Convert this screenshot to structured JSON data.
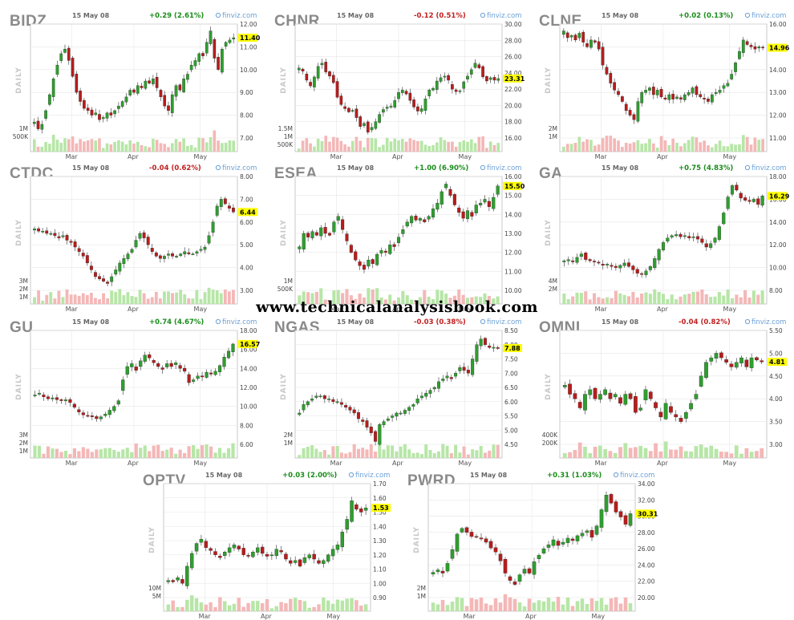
{
  "watermark": "www.technicalanalysisbook.com",
  "common": {
    "date": "15 May 08",
    "brand": "finviz.com",
    "daily_label": "DAILY",
    "months": [
      "Mar",
      "Apr",
      "May"
    ],
    "colors": {
      "up": "#2e9e2e",
      "down": "#b81c1c",
      "up_vol": "#b7e6a7",
      "down_vol": "#f4b7b7",
      "grid": "#e6e6e6",
      "frame": "#bbbbbb"
    }
  },
  "chart_data": [
    {
      "type": "candlestick",
      "ticker": "BIDZ",
      "change": "+0.29 (2.61%)",
      "direction": "up",
      "last": "11.40",
      "ylim": [
        7,
        12
      ],
      "yticks": [
        "12.00",
        "11.00",
        "10.00",
        "9.00",
        "8.00",
        "7.00"
      ],
      "vol_ticks": [
        "1M",
        "500K"
      ],
      "vol_max": 2000000,
      "prices": [
        7.7,
        7.4,
        7.6,
        8.2,
        8.9,
        9.6,
        10.2,
        10.7,
        10.9,
        10.4,
        9.7,
        9.0,
        8.6,
        8.3,
        8.2,
        8.0,
        8.1,
        7.8,
        7.9,
        8.1,
        8.0,
        8.2,
        8.4,
        8.6,
        8.8,
        9.1,
        9.0,
        9.3,
        9.2,
        9.5,
        9.4,
        9.6,
        9.2,
        8.8,
        8.4,
        8.2,
        8.9,
        9.3,
        9.1,
        9.6,
        9.8,
        10.2,
        10.4,
        10.7,
        10.6,
        11.2,
        11.7,
        10.5,
        10.0,
        10.9,
        11.2,
        11.3,
        11.4
      ]
    },
    {
      "type": "candlestick",
      "ticker": "CHNR",
      "change": "-0.12 (0.51%)",
      "direction": "down",
      "last": "23.31",
      "ylim": [
        16,
        30
      ],
      "yticks": [
        "30.00",
        "28.00",
        "26.00",
        "24.00",
        "22.00",
        "20.00",
        "18.00",
        "16.00"
      ],
      "vol_ticks": [
        "1.5M",
        "1M",
        "500K"
      ],
      "vol_max": 3000000,
      "prices": [
        24.6,
        24.2,
        23.1,
        22.4,
        23.5,
        24.8,
        25.2,
        24.1,
        23.6,
        22.8,
        21.0,
        20.1,
        19.6,
        19.2,
        19.4,
        18.5,
        17.4,
        17.8,
        16.7,
        17.3,
        18.0,
        18.9,
        19.5,
        19.8,
        19.9,
        20.6,
        21.6,
        21.9,
        21.4,
        20.6,
        19.8,
        19.3,
        19.6,
        20.8,
        21.9,
        22.1,
        23.0,
        23.4,
        23.6,
        23.1,
        22.0,
        21.7,
        21.8,
        22.9,
        23.6,
        24.4,
        25.2,
        24.6,
        23.5,
        23.0,
        23.4,
        23.1,
        23.3
      ]
    },
    {
      "type": "candlestick",
      "ticker": "CLNE",
      "change": "+0.02 (0.13%)",
      "direction": "up",
      "last": "14.96",
      "ylim": [
        11,
        16
      ],
      "yticks": [
        "16.00",
        "15.00",
        "14.00",
        "13.00",
        "12.00",
        "11.00"
      ],
      "vol_ticks": [
        "2M",
        "1M"
      ],
      "vol_max": 3000000,
      "prices": [
        15.7,
        15.4,
        15.5,
        15.3,
        15.6,
        15.2,
        15.0,
        15.3,
        15.2,
        14.9,
        14.2,
        13.8,
        13.4,
        13.1,
        12.9,
        12.6,
        12.2,
        12.0,
        11.8,
        12.6,
        13.0,
        13.1,
        13.2,
        12.9,
        13.1,
        12.8,
        12.7,
        12.9,
        12.7,
        12.8,
        12.7,
        12.9,
        13.0,
        13.2,
        12.9,
        12.8,
        12.7,
        12.6,
        12.9,
        13.0,
        13.1,
        13.3,
        13.4,
        13.8,
        14.3,
        14.8,
        15.3,
        15.1,
        15.0,
        14.9,
        15.0,
        14.96
      ]
    },
    {
      "type": "candlestick",
      "ticker": "CTDC",
      "change": "-0.04 (0.62%)",
      "direction": "down",
      "last": "6.44",
      "ylim": [
        3,
        8
      ],
      "yticks": [
        "8.00",
        "7.00",
        "6.00",
        "5.00",
        "4.00",
        "3.00"
      ],
      "vol_ticks": [
        "3M",
        "2M",
        "1M"
      ],
      "vol_max": 6000000,
      "prices": [
        5.7,
        5.6,
        5.6,
        5.5,
        5.5,
        5.4,
        5.3,
        5.4,
        5.2,
        5.1,
        4.9,
        4.7,
        4.5,
        4.2,
        3.9,
        3.6,
        3.5,
        3.4,
        3.3,
        3.6,
        3.9,
        4.2,
        4.4,
        4.6,
        4.8,
        5.2,
        5.5,
        5.3,
        5.0,
        4.7,
        4.5,
        4.4,
        4.5,
        4.6,
        4.5,
        4.5,
        4.6,
        4.7,
        4.6,
        4.6,
        4.7,
        4.8,
        4.9,
        5.4,
        6.0,
        6.7,
        7.0,
        6.8,
        6.6,
        6.44
      ]
    },
    {
      "type": "candlestick",
      "ticker": "ESEA",
      "change": "+1.00 (6.90%)",
      "direction": "up",
      "last": "15.50",
      "ylim": [
        10,
        16
      ],
      "yticks": [
        "16.00",
        "15.00",
        "14.00",
        "13.00",
        "12.00",
        "11.00",
        "10.00"
      ],
      "vol_ticks": [
        "1M",
        "500K"
      ],
      "vol_max": 1500000,
      "prices": [
        12.3,
        13.0,
        12.8,
        13.1,
        12.9,
        13.3,
        13.0,
        12.9,
        13.6,
        13.9,
        13.2,
        12.6,
        12.0,
        11.6,
        11.3,
        11.1,
        11.6,
        11.4,
        11.9,
        12.1,
        12.0,
        12.4,
        12.3,
        12.8,
        13.2,
        13.6,
        13.9,
        13.7,
        13.8,
        13.6,
        13.9,
        14.3,
        14.6,
        15.2,
        15.6,
        15.0,
        14.5,
        14.1,
        13.8,
        14.2,
        13.9,
        14.5,
        14.6,
        14.8,
        14.4,
        14.9,
        15.5
      ]
    },
    {
      "type": "candlestick",
      "ticker": "GA",
      "change": "+0.75 (4.83%)",
      "direction": "up",
      "last": "16.29",
      "ylim": [
        8,
        18
      ],
      "yticks": [
        "18.00",
        "16.00",
        "14.00",
        "12.00",
        "10.00",
        "8.00"
      ],
      "vol_ticks": [
        "4M",
        "2M"
      ],
      "vol_max": 6000000,
      "prices": [
        10.6,
        10.7,
        10.5,
        10.9,
        11.2,
        10.7,
        10.6,
        10.5,
        10.4,
        10.2,
        10.3,
        10.1,
        10.0,
        10.2,
        10.4,
        10.1,
        9.8,
        9.5,
        9.4,
        9.7,
        10.1,
        10.8,
        11.6,
        12.2,
        12.6,
        12.8,
        12.9,
        12.7,
        12.8,
        12.6,
        12.7,
        12.5,
        12.2,
        11.8,
        12.1,
        12.6,
        13.6,
        14.8,
        16.2,
        17.2,
        16.8,
        16.1,
        15.9,
        15.8,
        16.0,
        15.54,
        16.29
      ]
    },
    {
      "type": "candlestick",
      "ticker": "GU",
      "change": "+0.74 (4.67%)",
      "direction": "up",
      "last": "16.57",
      "ylim": [
        6,
        18
      ],
      "yticks": [
        "18.00",
        "16.00",
        "14.00",
        "12.00",
        "10.00",
        "8.00",
        "6.00"
      ],
      "vol_ticks": [
        "3M",
        "2M",
        "1M"
      ],
      "vol_max": 5000000,
      "prices": [
        11.2,
        11.4,
        11.0,
        10.8,
        10.9,
        10.7,
        10.6,
        10.7,
        10.4,
        9.9,
        9.4,
        9.1,
        9.0,
        8.9,
        8.7,
        8.9,
        9.2,
        9.6,
        10.0,
        10.6,
        12.8,
        14.2,
        14.5,
        13.8,
        14.8,
        15.4,
        15.1,
        14.6,
        14.2,
        13.9,
        14.5,
        14.2,
        14.6,
        14.0,
        13.7,
        12.5,
        12.8,
        13.2,
        13.1,
        13.6,
        13.4,
        13.7,
        14.3,
        15.2,
        15.83,
        16.57
      ]
    },
    {
      "type": "candlestick",
      "ticker": "NGAS",
      "change": "-0.03 (0.38%)",
      "direction": "down",
      "last": "7.88",
      "ylim": [
        4.5,
        8.5
      ],
      "yticks": [
        "8.50",
        "8.00",
        "7.50",
        "7.00",
        "6.50",
        "6.00",
        "5.50",
        "5.00",
        "4.50"
      ],
      "vol_ticks": [
        "2M",
        "1M"
      ],
      "vol_max": 4000000,
      "prices": [
        5.6,
        5.9,
        6.0,
        6.1,
        6.2,
        6.2,
        6.1,
        6.1,
        6.0,
        6.0,
        5.9,
        5.8,
        5.7,
        5.6,
        5.4,
        5.3,
        5.1,
        4.9,
        4.6,
        5.2,
        5.3,
        5.4,
        5.5,
        5.6,
        5.6,
        5.7,
        5.8,
        5.9,
        6.1,
        6.2,
        6.3,
        6.4,
        6.5,
        6.7,
        6.8,
        6.9,
        6.8,
        7.0,
        7.2,
        7.1,
        7.0,
        7.5,
        8.0,
        8.2,
        8.0,
        7.9,
        7.91,
        7.88
      ]
    },
    {
      "type": "candlestick",
      "ticker": "OMNI",
      "change": "-0.04 (0.82%)",
      "direction": "down",
      "last": "4.81",
      "ylim": [
        3,
        5.5
      ],
      "yticks": [
        "5.50",
        "5.00",
        "4.50",
        "4.00",
        "3.50",
        "3.00"
      ],
      "vol_ticks": [
        "400K",
        "200K"
      ],
      "vol_max": 700000,
      "prices": [
        4.3,
        4.1,
        4.0,
        3.8,
        4.1,
        4.2,
        4.0,
        4.1,
        4.2,
        4.0,
        4.1,
        3.9,
        4.1,
        4.0,
        3.7,
        3.8,
        4.2,
        4.0,
        3.8,
        3.6,
        3.9,
        3.7,
        3.6,
        3.5,
        3.7,
        3.9,
        4.1,
        4.5,
        4.8,
        4.9,
        5.0,
        4.9,
        4.8,
        4.7,
        4.8,
        4.9,
        4.7,
        4.9,
        4.85,
        4.81
      ]
    },
    {
      "type": "candlestick",
      "ticker": "OPTV",
      "change": "+0.03 (2.00%)",
      "direction": "up",
      "last": "1.53",
      "ylim": [
        0.9,
        1.7
      ],
      "yticks": [
        "1.70",
        "1.60",
        "1.50",
        "1.40",
        "1.30",
        "1.20",
        "1.10",
        "1.00",
        "0.90"
      ],
      "vol_ticks": [
        "10M",
        "5M"
      ],
      "vol_max": 20000000,
      "prices": [
        1.02,
        1.01,
        1.04,
        1.0,
        1.12,
        1.21,
        1.28,
        1.31,
        1.25,
        1.23,
        1.2,
        1.18,
        1.22,
        1.25,
        1.27,
        1.24,
        1.2,
        1.19,
        1.22,
        1.25,
        1.21,
        1.19,
        1.2,
        1.24,
        1.22,
        1.17,
        1.14,
        1.16,
        1.12,
        1.18,
        1.2,
        1.17,
        1.14,
        1.16,
        1.2,
        1.24,
        1.27,
        1.36,
        1.45,
        1.58,
        1.52,
        1.5,
        1.53
      ]
    },
    {
      "type": "candlestick",
      "ticker": "PWRD",
      "change": "+0.31 (1.03%)",
      "direction": "up",
      "last": "30.31",
      "ylim": [
        20,
        34
      ],
      "yticks": [
        "34.00",
        "32.00",
        "30.00",
        "28.00",
        "26.00",
        "24.00",
        "22.00",
        "20.00"
      ],
      "vol_ticks": [
        "2M",
        "1M"
      ],
      "vol_max": 3000000,
      "prices": [
        23.1,
        23.4,
        23.0,
        24.2,
        25.9,
        27.8,
        28.5,
        28.0,
        27.5,
        27.4,
        27.2,
        26.8,
        26.1,
        25.6,
        24.5,
        23.0,
        22.1,
        21.6,
        22.8,
        23.5,
        23.0,
        24.4,
        25.2,
        26.0,
        26.5,
        27.1,
        26.4,
        26.8,
        27.3,
        27.0,
        27.6,
        27.9,
        28.2,
        27.4,
        28.8,
        30.8,
        32.6,
        31.6,
        30.5,
        29.9,
        29.0,
        30.31
      ]
    }
  ]
}
